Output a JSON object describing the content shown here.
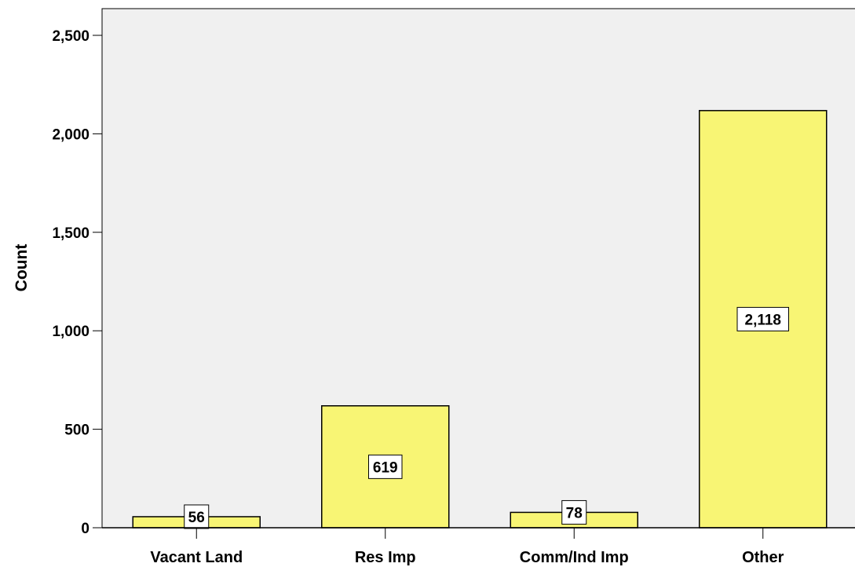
{
  "chart_data": {
    "type": "bar",
    "title": "",
    "xlabel": "",
    "ylabel": "Count",
    "categories": [
      "Vacant Land",
      "Res Imp",
      "Comm/Ind Imp",
      "Other"
    ],
    "values": [
      56,
      619,
      78,
      2118
    ],
    "data_labels": [
      "56",
      "619",
      "78",
      "2,118"
    ],
    "ylim": [
      0,
      2500
    ],
    "yticks": [
      0,
      500,
      1000,
      1500,
      2000,
      2500
    ],
    "ytick_labels": [
      "0",
      "500",
      "1,000",
      "1,500",
      "2,000",
      "2,500"
    ],
    "grid": false,
    "legend": "none",
    "colors": {
      "bar_fill": "#f8f574",
      "plot_background": "#f0f0f0",
      "data_label_background": "#ffffff"
    }
  }
}
